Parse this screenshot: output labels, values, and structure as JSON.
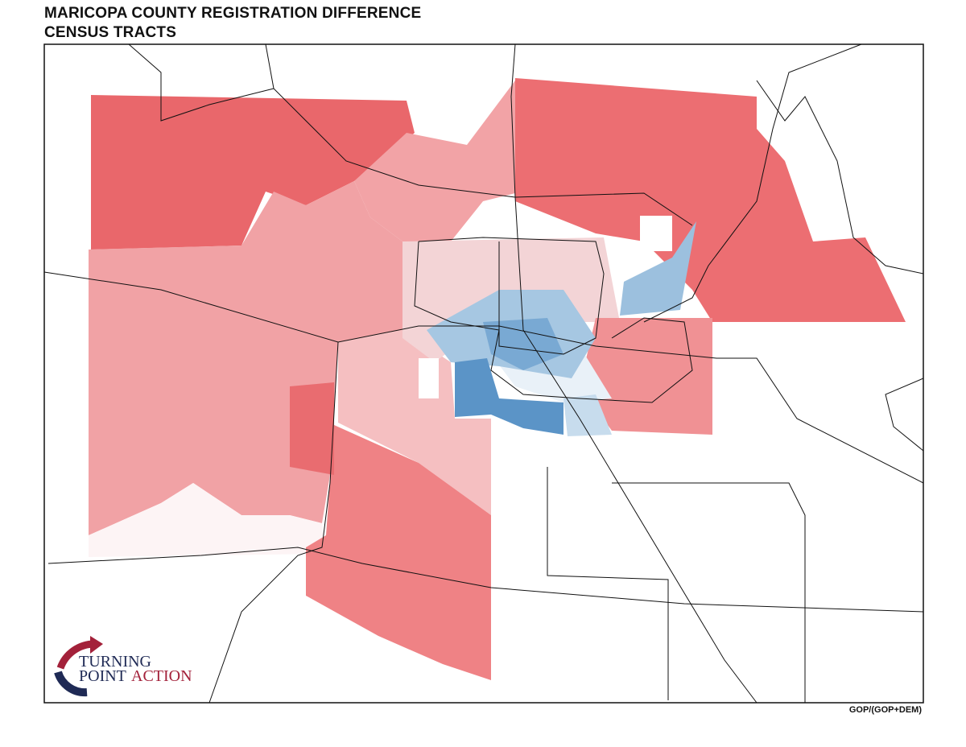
{
  "header": {
    "title": "MARICOPA COUNTY REGISTRATION DIFFERENCE",
    "subtitle": "CENSUS TRACTS"
  },
  "map": {
    "legend_label": "GOP/(GOP+DEM)"
  },
  "logo": {
    "line1": "TURNING",
    "line2": "POINT",
    "line3": "ACTION"
  }
}
